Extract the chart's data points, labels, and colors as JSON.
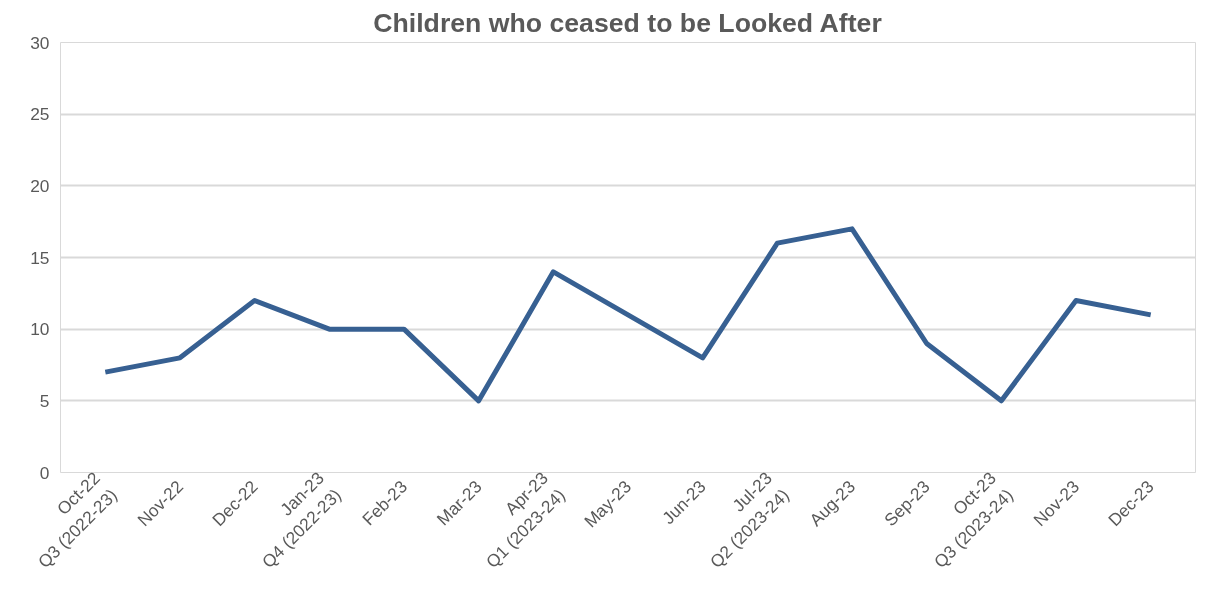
{
  "chart_data": {
    "type": "line",
    "title": "Children who ceased to be Looked After",
    "categories": [
      "Oct-22\nQ3 (2022-23)",
      "Nov-22",
      "Dec-22",
      "Jan-23\nQ4 (2022-23)",
      "Feb-23",
      "Mar-23",
      "Apr-23\nQ1 (2023-24)",
      "May-23",
      "Jun-23",
      "Jul-23\nQ2 (2023-24)",
      "Aug-23",
      "Sep-23",
      "Oct-23\nQ3 (2023-24)",
      "Nov-23",
      "Dec-23"
    ],
    "series": [
      {
        "color": "#376092",
        "values": [
          7,
          8,
          12,
          10,
          10,
          5,
          14,
          11,
          8,
          16,
          17,
          9,
          5,
          12,
          11
        ]
      }
    ],
    "ylim": [
      0,
      30
    ],
    "yticks": [
      0,
      5,
      10,
      15,
      20,
      25,
      30
    ],
    "grid": "y",
    "marker": "none",
    "line_style": "solid"
  }
}
